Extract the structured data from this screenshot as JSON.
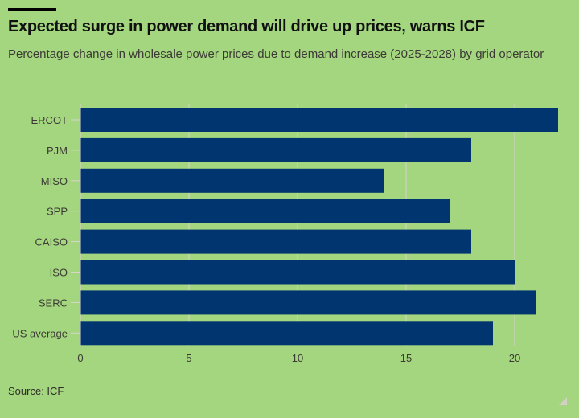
{
  "header": {
    "title": "Expected surge in power demand will drive up prices, warns ICF",
    "subtitle": "Percentage change in wholesale power prices due to demand increase (2025-2028) by grid operator"
  },
  "footer": {
    "source": "Source: ICF"
  },
  "colors": {
    "background": "#a3d67f",
    "bar": "#00356f",
    "grid": "#d9d3c9",
    "text": "#3d3a35"
  },
  "chart_data": {
    "type": "bar",
    "orientation": "horizontal",
    "title": "Expected surge in power demand will drive up prices, warns ICF",
    "subtitle": "Percentage change in wholesale power prices due to demand increase (2025-2028) by grid operator",
    "categories": [
      "ERCOT",
      "PJM",
      "MISO",
      "SPP",
      "CAISO",
      "ISO",
      "SERC",
      "US average"
    ],
    "values": [
      22,
      18,
      14,
      17,
      18,
      20,
      21,
      19
    ],
    "xlabel": "",
    "ylabel": "",
    "xlim": [
      0,
      22
    ],
    "xticks": [
      0,
      5,
      10,
      15,
      20
    ],
    "grid": true,
    "legend": "none"
  }
}
